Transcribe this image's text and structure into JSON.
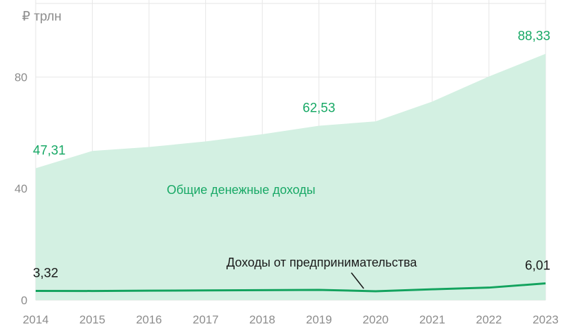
{
  "chart_data": {
    "type": "area",
    "unit_label": "₽ трлн",
    "x": [
      "2014",
      "2015",
      "2016",
      "2017",
      "2018",
      "2019",
      "2020",
      "2021",
      "2022",
      "2023"
    ],
    "ylim": [
      0,
      100
    ],
    "yticks": [
      0,
      40,
      80
    ],
    "grid": true,
    "series": [
      {
        "name": "Общие денежные доходы",
        "kind": "area",
        "color": "#d3f0e2",
        "values": [
          47.31,
          53.5,
          54.9,
          56.9,
          59.5,
          62.53,
          64.1,
          71.2,
          80.2,
          88.33
        ]
      },
      {
        "name": "Доходы от предпринимательства",
        "kind": "line",
        "color": "#13a35e",
        "values": [
          3.32,
          3.3,
          3.4,
          3.5,
          3.6,
          3.7,
          3.2,
          3.9,
          4.5,
          6.01
        ]
      }
    ],
    "data_labels": [
      {
        "series": 0,
        "index": 0,
        "text": "47,31"
      },
      {
        "series": 0,
        "index": 5,
        "text": "62,53"
      },
      {
        "series": 0,
        "index": 9,
        "text": "88,33"
      },
      {
        "series": 1,
        "index": 0,
        "text": "3,32"
      },
      {
        "series": 1,
        "index": 9,
        "text": "6,01"
      }
    ]
  }
}
